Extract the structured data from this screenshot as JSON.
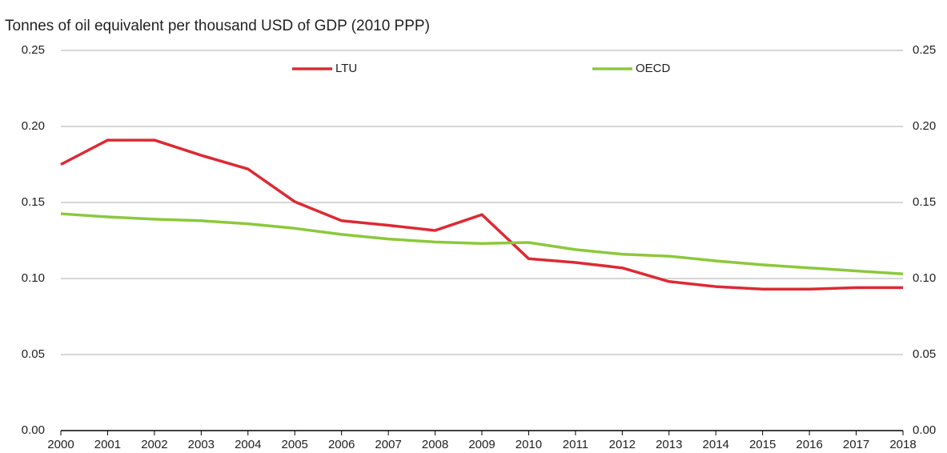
{
  "chart_data": {
    "type": "line",
    "title": "Tonnes of oil equivalent per thousand USD of GDP (2010 PPP)",
    "categories": [
      "2000",
      "2001",
      "2002",
      "2003",
      "2004",
      "2005",
      "2006",
      "2007",
      "2008",
      "2009",
      "2010",
      "2011",
      "2012",
      "2013",
      "2014",
      "2015",
      "2016",
      "2017",
      "2018"
    ],
    "series": [
      {
        "name": "LTU",
        "color": "#dc2a34",
        "values": [
          0.175,
          0.191,
          0.191,
          0.181,
          0.172,
          0.1505,
          0.138,
          0.135,
          0.1316,
          0.142,
          0.113,
          0.1105,
          0.107,
          0.098,
          0.0947,
          0.093,
          0.093,
          0.094,
          0.094
        ]
      },
      {
        "name": "OECD",
        "color": "#8cc83c",
        "values": [
          0.1426,
          0.1405,
          0.139,
          0.138,
          0.136,
          0.133,
          0.129,
          0.126,
          0.124,
          0.123,
          0.1237,
          0.119,
          0.116,
          0.1147,
          0.1116,
          0.109,
          0.107,
          0.105,
          0.103
        ]
      }
    ],
    "ylim": [
      0,
      0.25
    ],
    "yticks": [
      {
        "value": 0,
        "label": "0.00"
      },
      {
        "value": 0.05,
        "label": "0.05"
      },
      {
        "value": 0.1,
        "label": "0.10"
      },
      {
        "value": 0.15,
        "label": "0.15"
      },
      {
        "value": 0.2,
        "label": "0.20"
      },
      {
        "value": 0.25,
        "label": "0.25"
      }
    ],
    "y2lim": [
      0,
      0.25
    ],
    "y2ticks": [
      {
        "value": 0,
        "label": "0.00"
      },
      {
        "value": 0.05,
        "label": "0.05"
      },
      {
        "value": 0.1,
        "label": "0.10"
      },
      {
        "value": 0.15,
        "label": "0.15"
      },
      {
        "value": 0.2,
        "label": "0.20"
      },
      {
        "value": 0.25,
        "label": "0.25"
      }
    ],
    "grid": true
  }
}
